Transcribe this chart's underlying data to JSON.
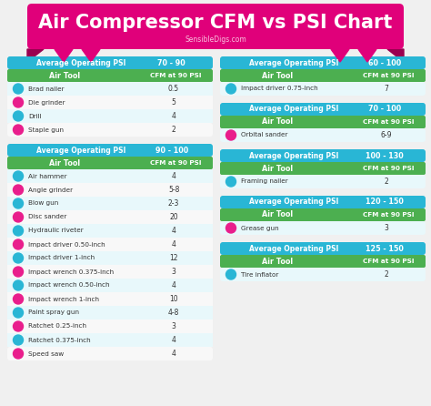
{
  "title": "Air Compressor CFM vs PSI Chart",
  "subtitle": "SensibleDigs.com",
  "bg_color": "#f0f0f0",
  "title_bg": "#e0007a",
  "header_blue": "#29b6d5",
  "header_green": "#4caf50",
  "row_light": "#e8f8fb",
  "row_white": "#f8f8f8",
  "icon_cyan": "#29b6d5",
  "icon_pink": "#e91e8c",
  "left_tables": [
    {
      "psi": "70 - 90",
      "rows": [
        [
          "Brad nailer",
          "0.5",
          "cyan"
        ],
        [
          "Die grinder",
          "5",
          "pink"
        ],
        [
          "Drill",
          "4",
          "cyan"
        ],
        [
          "Staple gun",
          "2",
          "pink"
        ]
      ]
    },
    {
      "psi": "90 - 100",
      "rows": [
        [
          "Air hammer",
          "4",
          "cyan"
        ],
        [
          "Angle grinder",
          "5-8",
          "pink"
        ],
        [
          "Blow gun",
          "2-3",
          "cyan"
        ],
        [
          "Disc sander",
          "20",
          "pink"
        ],
        [
          "Hydraulic riveter",
          "4",
          "cyan"
        ],
        [
          "Impact driver 0.50-inch",
          "4",
          "pink"
        ],
        [
          "Impact driver 1-inch",
          "12",
          "cyan"
        ],
        [
          "Impact wrench 0.375-inch",
          "3",
          "pink"
        ],
        [
          "Impact wrench 0.50-inch",
          "4",
          "cyan"
        ],
        [
          "Impact wrench 1-inch",
          "10",
          "pink"
        ],
        [
          "Paint spray gun",
          "4-8",
          "cyan"
        ],
        [
          "Ratchet 0.25-inch",
          "3",
          "pink"
        ],
        [
          "Ratchet 0.375-inch",
          "4",
          "cyan"
        ],
        [
          "Speed saw",
          "4",
          "pink"
        ]
      ]
    }
  ],
  "right_tables": [
    {
      "psi": "60 - 100",
      "rows": [
        [
          "Impact driver 0.75-inch",
          "7",
          "cyan"
        ]
      ]
    },
    {
      "psi": "70 - 100",
      "rows": [
        [
          "Orbital sander",
          "6-9",
          "pink"
        ]
      ]
    },
    {
      "psi": "100 - 130",
      "rows": [
        [
          "Framing nailer",
          "2",
          "cyan"
        ]
      ]
    },
    {
      "psi": "120 - 150",
      "rows": [
        [
          "Grease gun",
          "3",
          "pink"
        ]
      ]
    },
    {
      "psi": "125 - 150",
      "rows": [
        [
          "Tire inflator",
          "2",
          "cyan"
        ]
      ]
    }
  ]
}
